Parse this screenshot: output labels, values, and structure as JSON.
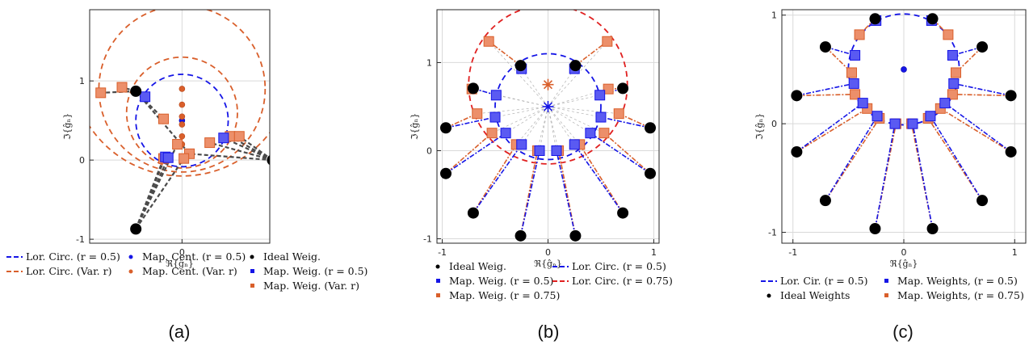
{
  "colors": {
    "blue": "#1515e6",
    "orange": "#d95f2b",
    "red": "#e02020",
    "dark": "#4a4a4a",
    "black": "#000000",
    "grid": "#d9d9d9",
    "square_blue_fill": "#5a5af2",
    "square_orange_fill": "#ec8f6a"
  },
  "chart_data": [
    {
      "type": "scatter",
      "panel_label": "(a)",
      "xlabel": "ℜ{ĝₙ}",
      "ylabel": "ℑ{ĝₙ}",
      "xlim": [
        -1.0,
        0.95
      ],
      "ylim": [
        -1.05,
        1.9
      ],
      "xticks": [
        0
      ],
      "yticks": [
        -1,
        0,
        1
      ],
      "ytick_labels": [
        "-1",
        "0",
        "1"
      ],
      "xtick_labels": [
        "0"
      ],
      "grid": true,
      "legend_position": "bottom",
      "circles": [
        {
          "series": "Lor. Circ. (r = 0.5)",
          "cx": 0,
          "cy": 0.5,
          "r": 0.5,
          "color": "blue"
        },
        {
          "series": "Lor. Circ. (Var. r)",
          "cx": 0,
          "cy": 0.6,
          "r": 0.6,
          "color": "orange"
        },
        {
          "series": "Lor. Circ. (Var. r)",
          "cx": 0,
          "cy": 0.9,
          "r": 0.9,
          "color": "orange"
        },
        {
          "series": "Lor. Circ. (Var. r)",
          "cx": 0,
          "cy": 1.2,
          "r": 1.2,
          "color": "orange"
        }
      ],
      "centers": [
        {
          "series": "Map. Cent. (r = 0.5)",
          "points": [
            [
              0,
              0.5
            ]
          ],
          "color": "blue"
        },
        {
          "series": "Map. Cent. (Var. r)",
          "points": [
            [
              0,
              0.2
            ],
            [
              0,
              0.3
            ],
            [
              0,
              0.45
            ],
            [
              0,
              0.55
            ],
            [
              0,
              0.7
            ],
            [
              0,
              0.9
            ]
          ],
          "color": "orange"
        }
      ],
      "ideal_weights": [
        [
          -0.5,
          0.87
        ],
        [
          0.98,
          0
        ],
        [
          -0.5,
          -0.87
        ]
      ],
      "mapped_blue": [
        [
          -0.4,
          0.8
        ],
        [
          0.45,
          0.28
        ],
        [
          -0.18,
          0.04
        ],
        [
          -0.15,
          0.03
        ]
      ],
      "mapped_orange": [
        [
          -0.88,
          0.85
        ],
        [
          -0.65,
          0.92
        ],
        [
          -0.2,
          0.52
        ],
        [
          0.52,
          0.3
        ],
        [
          0.62,
          0.3
        ],
        [
          0.3,
          0.22
        ],
        [
          0.08,
          0.08
        ],
        [
          0.02,
          0.02
        ],
        [
          -0.05,
          0.2
        ],
        [
          -0.2,
          0.02
        ]
      ],
      "connections": [
        {
          "from": [
            -0.5,
            0.87
          ],
          "to": [
            -0.4,
            0.8
          ]
        },
        {
          "from": [
            -0.5,
            0.87
          ],
          "to": [
            -0.2,
            0.52
          ]
        },
        {
          "from": [
            -0.5,
            0.87
          ],
          "to": [
            -0.65,
            0.92
          ]
        },
        {
          "from": [
            -0.5,
            0.87
          ],
          "to": [
            -0.88,
            0.85
          ]
        },
        {
          "from": [
            -0.5,
            0.87
          ],
          "to": [
            0.08,
            0.08
          ]
        },
        {
          "from": [
            0.98,
            0
          ],
          "to": [
            0.45,
            0.28
          ]
        },
        {
          "from": [
            0.98,
            0
          ],
          "to": [
            0.52,
            0.3
          ]
        },
        {
          "from": [
            0.98,
            0
          ],
          "to": [
            0.62,
            0.3
          ]
        },
        {
          "from": [
            0.98,
            0
          ],
          "to": [
            0.3,
            0.22
          ]
        },
        {
          "from": [
            0.98,
            0
          ],
          "to": [
            0.08,
            0.08
          ]
        },
        {
          "from": [
            -0.5,
            -0.87
          ],
          "to": [
            -0.18,
            0.04
          ]
        },
        {
          "from": [
            -0.5,
            -0.87
          ],
          "to": [
            -0.15,
            0.03
          ]
        },
        {
          "from": [
            -0.5,
            -0.87
          ],
          "to": [
            -0.2,
            0.02
          ]
        },
        {
          "from": [
            -0.5,
            -0.87
          ],
          "to": [
            0.02,
            0.02
          ]
        },
        {
          "from": [
            -0.5,
            -0.87
          ],
          "to": [
            -0.05,
            0.2
          ]
        }
      ],
      "legend": [
        {
          "label": "Lor. Circ. (r = 0.5)",
          "kind": "dash",
          "color": "blue",
          "col": 0,
          "row": 0
        },
        {
          "label": "Lor. Circ. (Var. r)",
          "kind": "dash",
          "color": "orange",
          "col": 0,
          "row": 1
        },
        {
          "label": "Map. Cent. (r = 0.5)",
          "kind": "dot",
          "color": "blue",
          "col": 1,
          "row": 0
        },
        {
          "label": "Map. Cent. (Var. r)",
          "kind": "dot",
          "color": "orange",
          "col": 1,
          "row": 1
        },
        {
          "label": "Ideal Weig.",
          "kind": "dot",
          "color": "black",
          "col": 2,
          "row": 0
        },
        {
          "label": "Map. Weig. (r = 0.5)",
          "kind": "square",
          "color": "blue",
          "col": 2,
          "row": 1
        },
        {
          "label": "Map. Weig. (Var. r)",
          "kind": "square",
          "color": "orange",
          "col": 2,
          "row": 2
        }
      ]
    },
    {
      "type": "scatter",
      "panel_label": "(b)",
      "xlabel": "ℜ{ĝₙ}",
      "ylabel": "ℑ{ĝₙ}",
      "xlim": [
        -1.05,
        1.05
      ],
      "ylim": [
        -1.05,
        1.6
      ],
      "xticks": [
        -1,
        0,
        1
      ],
      "yticks": [
        -1,
        0,
        1
      ],
      "xtick_labels": [
        "-1",
        "0",
        "1"
      ],
      "ytick_labels": [
        "-1",
        "0",
        "1"
      ],
      "grid": true,
      "legend_position": "bottom",
      "circles": [
        {
          "series": "Lor. Circ. (r = 0.5)",
          "cx": 0,
          "cy": 0.5,
          "r": 0.5,
          "color": "blue"
        },
        {
          "series": "Lor. Circ. (r = 0.75)",
          "cx": 0,
          "cy": 0.75,
          "r": 0.75,
          "color": "red"
        }
      ],
      "stars": [
        {
          "point": [
            0,
            0.5
          ],
          "color": "blue"
        },
        {
          "point": [
            0,
            0.75
          ],
          "color": "orange"
        }
      ],
      "ideal_weights": [
        [
          0.966,
          0.259
        ],
        [
          0.707,
          0.707
        ],
        [
          0.259,
          0.966
        ],
        [
          -0.259,
          0.966
        ],
        [
          -0.707,
          0.707
        ],
        [
          -0.966,
          0.259
        ],
        [
          -0.966,
          -0.259
        ],
        [
          -0.707,
          -0.707
        ],
        [
          -0.259,
          -0.966
        ],
        [
          0.259,
          -0.966
        ],
        [
          0.707,
          -0.707
        ],
        [
          0.966,
          -0.259
        ]
      ],
      "mapped_blue": [
        [
          0.5,
          0.38
        ],
        [
          0.49,
          0.63
        ],
        [
          0.25,
          0.93
        ],
        [
          -0.25,
          0.93
        ],
        [
          -0.49,
          0.63
        ],
        [
          -0.5,
          0.38
        ],
        [
          -0.4,
          0.2
        ],
        [
          -0.25,
          0.07
        ],
        [
          -0.08,
          0.0
        ],
        [
          0.08,
          0.0
        ],
        [
          0.25,
          0.07
        ],
        [
          0.4,
          0.2
        ]
      ],
      "mapped_orange": [
        [
          0.67,
          0.42
        ],
        [
          0.57,
          0.7
        ],
        [
          0.56,
          1.24
        ],
        [
          -0.56,
          1.24
        ],
        [
          -0.72,
          0.7
        ],
        [
          -0.67,
          0.42
        ],
        [
          -0.53,
          0.2
        ],
        [
          -0.3,
          0.07
        ],
        [
          -0.1,
          0.0
        ],
        [
          0.1,
          0.0
        ],
        [
          0.3,
          0.07
        ],
        [
          0.53,
          0.2
        ]
      ],
      "legend": [
        {
          "label": "Ideal Weig.",
          "kind": "dot",
          "color": "black",
          "col": 0,
          "row": 0
        },
        {
          "label": "Map. Weig. (r = 0.5)",
          "kind": "square",
          "color": "blue",
          "col": 0,
          "row": 1
        },
        {
          "label": "Map. Weig. (r = 0.75)",
          "kind": "square",
          "color": "orange",
          "col": 0,
          "row": 2
        },
        {
          "label": "Lor. Circ. (r = 0.5)",
          "kind": "dash",
          "color": "blue",
          "col": 1,
          "row": 0
        },
        {
          "label": "Lor. Circ. (r = 0.75)",
          "kind": "dash",
          "color": "red",
          "col": 1,
          "row": 1
        }
      ]
    },
    {
      "type": "scatter",
      "panel_label": "(c)",
      "xlabel": "ℜ{ĝₙ}",
      "ylabel": "ℑ{ĝₙ}",
      "xlim": [
        -1.1,
        1.1
      ],
      "ylim": [
        -1.1,
        1.05
      ],
      "xticks": [
        -1,
        0,
        1
      ],
      "yticks": [
        -1,
        0,
        1
      ],
      "xtick_labels": [
        "-1",
        "0",
        "1"
      ],
      "ytick_labels": [
        "-1",
        "0",
        "1"
      ],
      "grid": true,
      "legend_position": "bottom",
      "circles": [
        {
          "series": "Lor. Cir. (r = 0.5)",
          "cx": 0,
          "cy": 0.5,
          "r": 0.5,
          "color": "blue"
        }
      ],
      "centers": [
        {
          "points": [
            [
              0,
              0.5
            ]
          ],
          "color": "blue"
        }
      ],
      "ideal_weights": [
        [
          0.966,
          0.259
        ],
        [
          0.707,
          0.707
        ],
        [
          0.259,
          0.966
        ],
        [
          -0.259,
          0.966
        ],
        [
          -0.707,
          0.707
        ],
        [
          -0.966,
          0.259
        ],
        [
          -0.966,
          -0.259
        ],
        [
          -0.707,
          -0.707
        ],
        [
          -0.259,
          -0.966
        ],
        [
          0.259,
          -0.966
        ],
        [
          0.707,
          -0.707
        ],
        [
          0.966,
          -0.259
        ]
      ],
      "mapped_blue": [
        [
          0.45,
          0.37
        ],
        [
          0.44,
          0.63
        ],
        [
          0.25,
          0.95
        ],
        [
          -0.25,
          0.95
        ],
        [
          -0.44,
          0.63
        ],
        [
          -0.45,
          0.37
        ],
        [
          -0.37,
          0.19
        ],
        [
          -0.24,
          0.07
        ],
        [
          -0.08,
          0.0
        ],
        [
          0.08,
          0.0
        ],
        [
          0.24,
          0.07
        ],
        [
          0.37,
          0.19
        ]
      ],
      "mapped_orange": [
        [
          0.44,
          0.27
        ],
        [
          0.47,
          0.47
        ],
        [
          0.4,
          0.82
        ],
        [
          -0.4,
          0.82
        ],
        [
          -0.47,
          0.47
        ],
        [
          -0.44,
          0.27
        ],
        [
          -0.33,
          0.14
        ],
        [
          -0.22,
          0.05
        ],
        [
          -0.07,
          0.0
        ],
        [
          0.07,
          0.0
        ],
        [
          0.22,
          0.05
        ],
        [
          0.33,
          0.14
        ]
      ],
      "legend": [
        {
          "label": "Lor. Cir. (r = 0.5)",
          "kind": "dash",
          "color": "blue",
          "col": 0,
          "row": 0
        },
        {
          "label": "Ideal Weights",
          "kind": "dot",
          "color": "black",
          "col": 0,
          "row": 1
        },
        {
          "label": "Map. Weights, (r = 0.5)",
          "kind": "square",
          "color": "blue",
          "col": 1,
          "row": 0
        },
        {
          "label": "Map. Weights, (r = 0.75)",
          "kind": "square",
          "color": "orange",
          "col": 1,
          "row": 1
        }
      ]
    }
  ]
}
